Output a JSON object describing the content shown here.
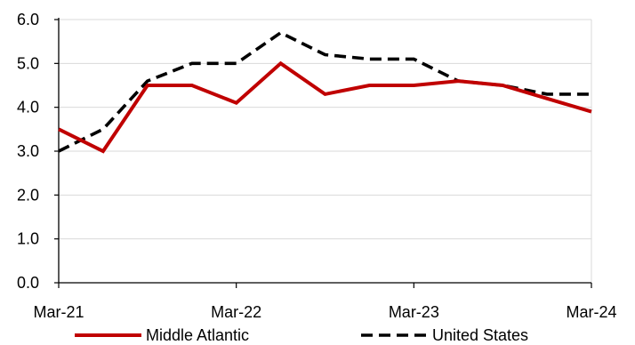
{
  "chart_data": {
    "type": "line",
    "title": "",
    "xlabel": "",
    "ylabel": "",
    "ylim": [
      0,
      6
    ],
    "yticks": [
      "0.0",
      "1.0",
      "2.0",
      "3.0",
      "4.0",
      "5.0",
      "6.0"
    ],
    "xticks": [
      "Mar-21",
      "Mar-22",
      "Mar-23",
      "Mar-24"
    ],
    "x": [
      "Mar-21",
      "Jun-21",
      "Sep-21",
      "Dec-21",
      "Mar-22",
      "Jun-22",
      "Sep-22",
      "Dec-22",
      "Mar-23",
      "Jun-23",
      "Sep-23",
      "Dec-23",
      "Mar-24"
    ],
    "grid": true,
    "legend_position": "bottom",
    "series": [
      {
        "name": "Middle Atlantic",
        "color": "#C00000",
        "style": "solid",
        "values": [
          3.5,
          3.0,
          4.5,
          4.5,
          4.1,
          5.0,
          4.3,
          4.5,
          4.5,
          4.6,
          4.5,
          4.2,
          3.9
        ]
      },
      {
        "name": "United States",
        "color": "#000000",
        "style": "dashed",
        "values": [
          3.0,
          3.5,
          4.6,
          5.0,
          5.0,
          5.7,
          5.2,
          5.1,
          5.1,
          4.6,
          4.5,
          4.3,
          4.3
        ]
      }
    ]
  }
}
